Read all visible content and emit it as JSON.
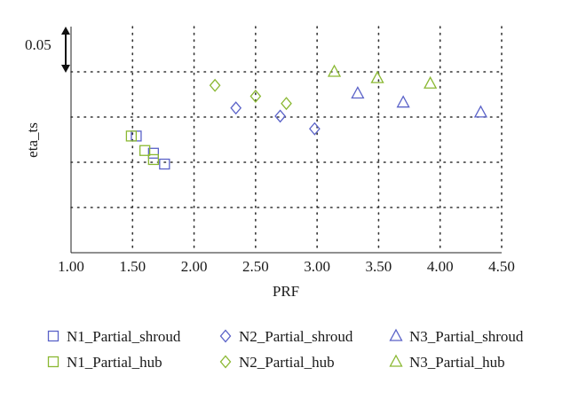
{
  "chart_data": {
    "type": "scatter",
    "xlabel": "PRF",
    "ylabel": "eta_ts",
    "xlim": [
      1.0,
      4.5
    ],
    "xticks": [
      "1.00",
      "1.50",
      "2.00",
      "2.50",
      "3.00",
      "3.50",
      "4.00",
      "4.50"
    ],
    "y_tick_labels_shown": false,
    "ylim_units": [
      0,
      5
    ],
    "scale_bar_label": "0.05",
    "grid": true,
    "grid_style": "dotted",
    "legend_position": "bottom",
    "series": [
      {
        "name": "N1_Partial_shroud",
        "marker": "square",
        "color": "#5a62c8",
        "points": [
          [
            1.53,
            2.58
          ],
          [
            1.67,
            2.2
          ],
          [
            1.76,
            1.96
          ]
        ]
      },
      {
        "name": "N1_Partial_hub",
        "marker": "square",
        "color": "#8ab832",
        "points": [
          [
            1.49,
            2.58
          ],
          [
            1.6,
            2.26
          ],
          [
            1.67,
            2.06
          ]
        ]
      },
      {
        "name": "N2_Partial_shroud",
        "marker": "diamond",
        "color": "#5a62c8",
        "points": [
          [
            2.34,
            3.2
          ],
          [
            2.7,
            3.02
          ],
          [
            2.98,
            2.74
          ]
        ]
      },
      {
        "name": "N2_Partial_hub",
        "marker": "diamond",
        "color": "#8ab832",
        "points": [
          [
            2.17,
            3.7
          ],
          [
            2.5,
            3.46
          ],
          [
            2.75,
            3.3
          ]
        ]
      },
      {
        "name": "N3_Partial_shroud",
        "marker": "triangle",
        "color": "#5a62c8",
        "points": [
          [
            3.33,
            3.52
          ],
          [
            3.7,
            3.32
          ],
          [
            4.33,
            3.1
          ]
        ]
      },
      {
        "name": "N3_Partial_hub",
        "marker": "triangle",
        "color": "#8ab832",
        "points": [
          [
            3.14,
            4.0
          ],
          [
            3.49,
            3.86
          ],
          [
            3.92,
            3.74
          ]
        ]
      }
    ]
  }
}
